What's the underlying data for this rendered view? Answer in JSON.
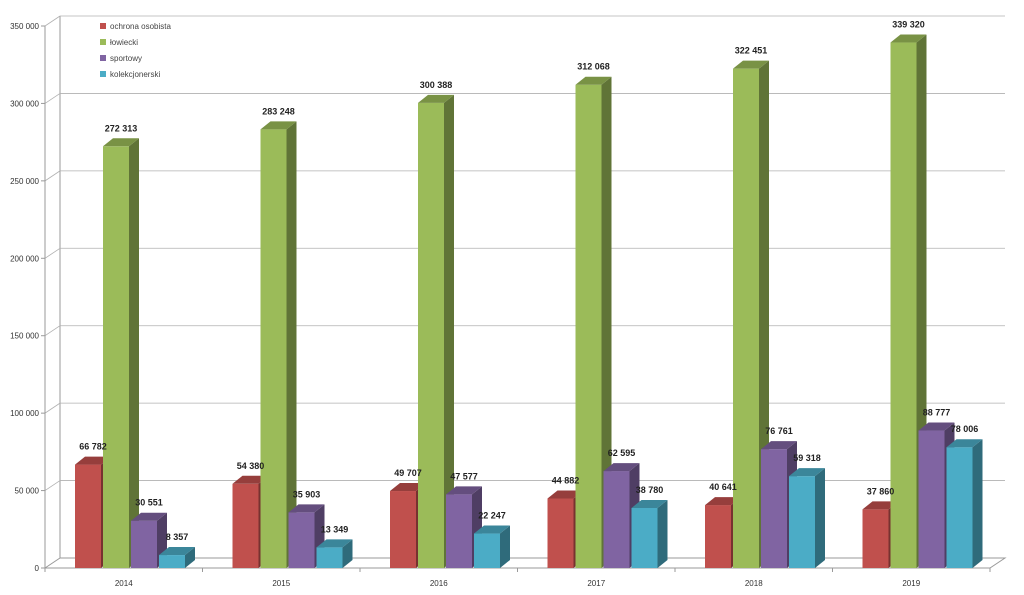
{
  "chart_data": {
    "type": "bar",
    "categories": [
      "2014",
      "2015",
      "2016",
      "2017",
      "2018",
      "2019"
    ],
    "series": [
      {
        "name": "ochrona osobista",
        "color": "#C0504D",
        "values": [
          66782,
          54380,
          49707,
          44882,
          40641,
          37860
        ],
        "labels": [
          "66 782",
          "54 380",
          "49 707",
          "44 882",
          "40 641",
          "37 860"
        ]
      },
      {
        "name": "łowiecki",
        "color": "#9BBB59",
        "values": [
          272313,
          283248,
          300388,
          312068,
          322451,
          339320
        ],
        "labels": [
          "272 313",
          "283 248",
          "300 388",
          "312 068",
          "322 451",
          "339 320"
        ]
      },
      {
        "name": "sportowy",
        "color": "#8064A2",
        "values": [
          30551,
          35903,
          47577,
          62595,
          76761,
          88777
        ],
        "labels": [
          "30 551",
          "35 903",
          "47 577",
          "62 595",
          "76 761",
          "88 777"
        ]
      },
      {
        "name": "kolekcjonerski",
        "color": "#4BACC6",
        "values": [
          8357,
          13349,
          22247,
          38780,
          59318,
          78006
        ],
        "labels": [
          "8 357",
          "13 349",
          "22 247",
          "38 780",
          "59 318",
          "78 006"
        ]
      }
    ],
    "y_ticks": [
      0,
      50000,
      100000,
      150000,
      200000,
      250000,
      300000,
      350000
    ],
    "y_tick_labels": [
      "0",
      "50 000",
      "100 000",
      "150 000",
      "200 000",
      "250 000",
      "300 000",
      "350 000"
    ],
    "ylim": [
      0,
      350000
    ],
    "grid": true,
    "three_d": true,
    "legend_position": "top-left"
  }
}
